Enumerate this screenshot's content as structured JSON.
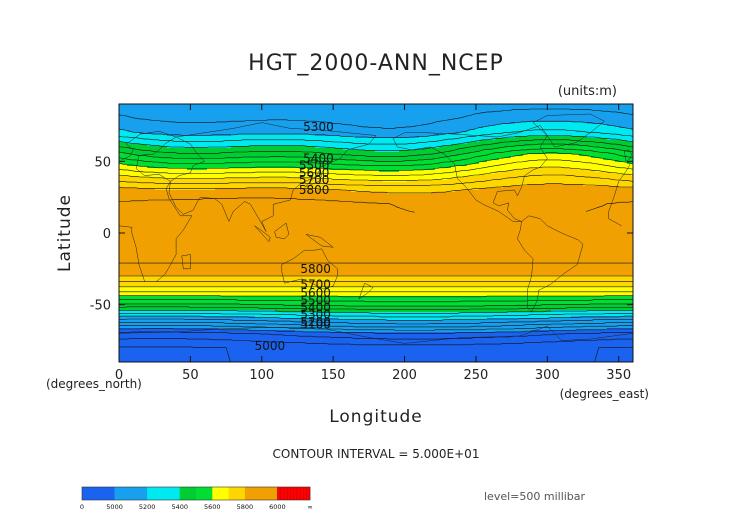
{
  "chart_data": {
    "type": "heatmap",
    "title": "HGT_2000-ANN_NCEP",
    "units_label": "(units:m)",
    "xlabel": "Longitude",
    "ylabel": "Latitude",
    "x_unit_label": "(degrees_east)",
    "y_unit_label": "(degrees_north)",
    "xlim": [
      0,
      360
    ],
    "ylim": [
      -90,
      90
    ],
    "x_ticks": [
      0,
      50,
      100,
      150,
      200,
      250,
      300,
      350
    ],
    "y_ticks": [
      50,
      0,
      -50
    ],
    "contour_interval_text": "CONTOUR INTERVAL = 5.000E+01",
    "level_text": "level=500 millibar",
    "contour_labels": [
      {
        "lon": 129,
        "lat": 74,
        "text": "5300"
      },
      {
        "lon": 129,
        "lat": 52,
        "text": "5400"
      },
      {
        "lon": 126,
        "lat": 47,
        "text": "5500"
      },
      {
        "lon": 126,
        "lat": 42,
        "text": "5600"
      },
      {
        "lon": 126,
        "lat": 37,
        "text": "5700"
      },
      {
        "lon": 126,
        "lat": 30,
        "text": "5800"
      },
      {
        "lon": 127,
        "lat": -25,
        "text": "5800"
      },
      {
        "lon": 127,
        "lat": -36,
        "text": "5700"
      },
      {
        "lon": 127,
        "lat": -42,
        "text": "5600"
      },
      {
        "lon": 127,
        "lat": -47,
        "text": "5500"
      },
      {
        "lon": 127,
        "lat": -52,
        "text": "5400"
      },
      {
        "lon": 127,
        "lat": -57,
        "text": "5300"
      },
      {
        "lon": 127,
        "lat": -62,
        "text": "5200"
      },
      {
        "lon": 127,
        "lat": -64,
        "text": "5100"
      },
      {
        "lon": 95,
        "lat": -79,
        "text": "5000"
      }
    ],
    "colorbar_labels": [
      "0",
      "5000",
      "5200",
      "5400",
      "5600",
      "5800",
      "6000",
      "∞"
    ],
    "colorbar_colors": [
      "#1a63f0",
      "#1a63f0",
      "#17a0ee",
      "#17a0ee",
      "#00e8f0",
      "#00e8f0",
      "#00cc33",
      "#00dd33",
      "#ffff00",
      "#ffd700",
      "#f0a000",
      "#f0a000",
      "#ff0000",
      "#ff0000"
    ]
  }
}
